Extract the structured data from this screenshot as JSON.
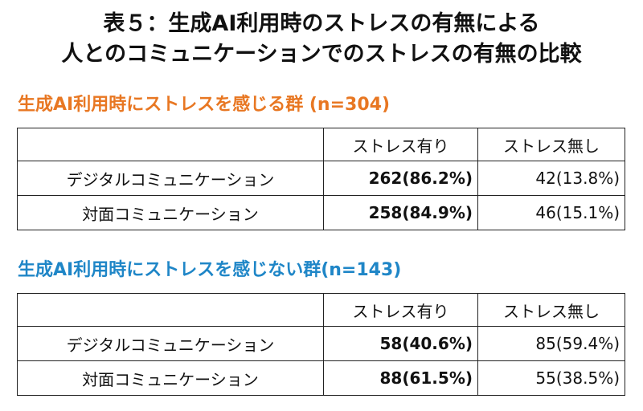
{
  "title": {
    "line1": "表５：生成AI利用時のストレスの有無による",
    "line2": "人とのコミュニケーションでのストレスの有無の比較"
  },
  "groups": [
    {
      "heading": "生成AI利用時にストレスを感じる群 (n=304)",
      "color": "#e87722",
      "columns": [
        "",
        "ストレス有り",
        "ストレス無し"
      ],
      "rows": [
        {
          "label": "デジタルコミュニケーション",
          "with_stress": "262(86.2%)",
          "without_stress": "42(13.8%)"
        },
        {
          "label": "対面コミュニケーション",
          "with_stress": "258(84.9%)",
          "without_stress": "46(15.1%)"
        }
      ]
    },
    {
      "heading": "生成AI利用時にストレスを感じない群(n=143)",
      "color": "#1f86c7",
      "columns": [
        "",
        "ストレス有り",
        "ストレス無し"
      ],
      "rows": [
        {
          "label": "デジタルコミュニケーション",
          "with_stress": "58(40.6%)",
          "without_stress": "85(59.4%)"
        },
        {
          "label": "対面コミュニケーション",
          "with_stress": "88(61.5%)",
          "without_stress": "55(38.5%)"
        }
      ]
    }
  ]
}
